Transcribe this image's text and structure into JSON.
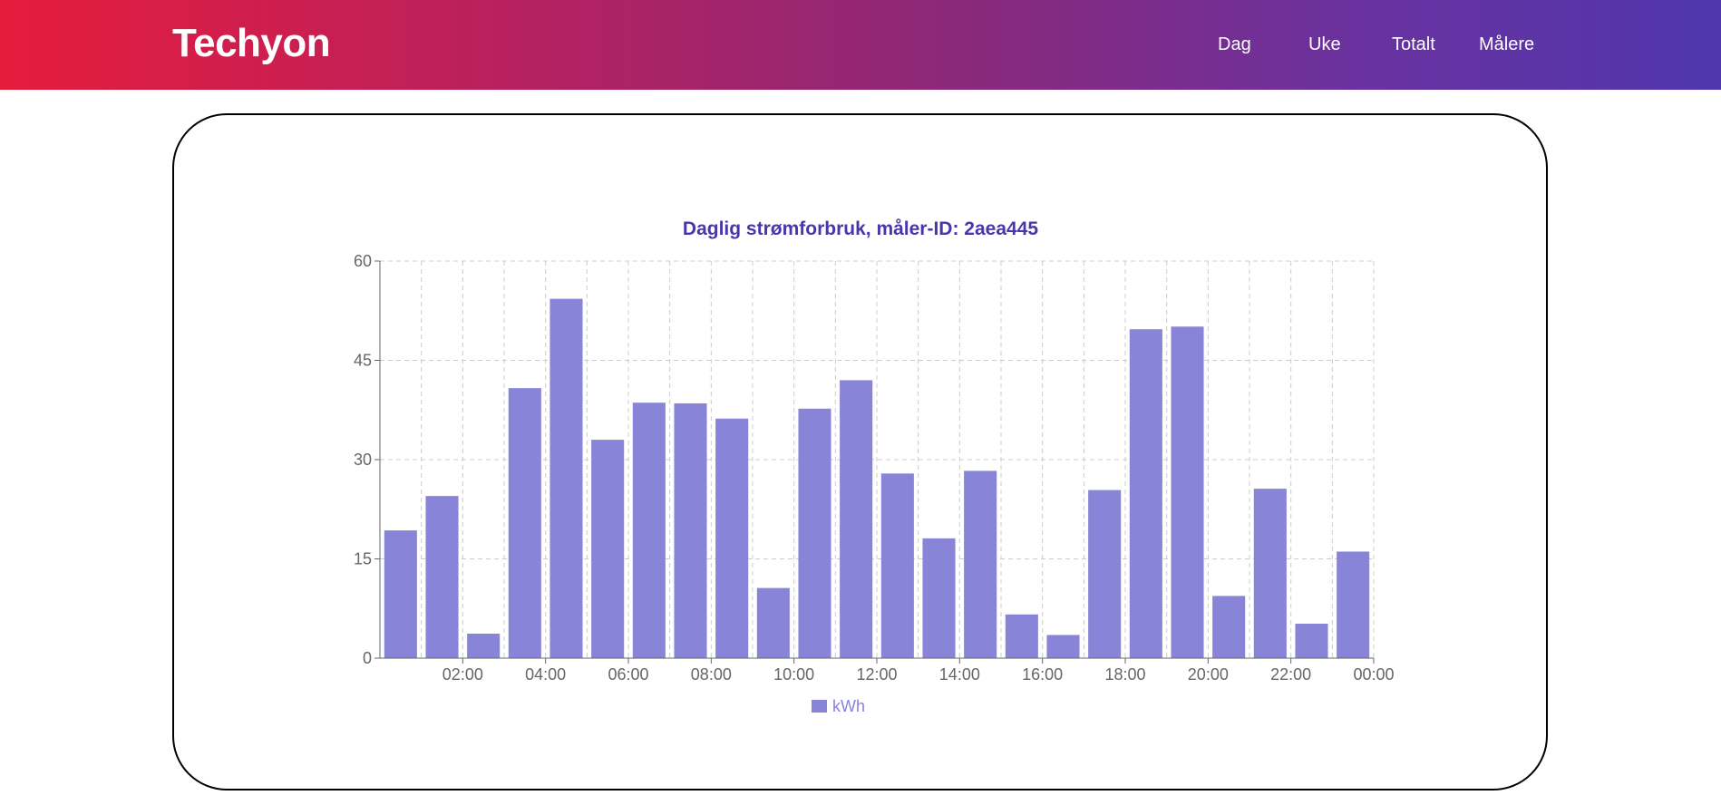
{
  "header": {
    "brand": "Techyon",
    "nav": [
      {
        "label": "Dag"
      },
      {
        "label": "Uke"
      },
      {
        "label": "Totalt"
      },
      {
        "label": "Målere"
      }
    ]
  },
  "colors": {
    "bar": "#8884d8",
    "title": "#4b35aa"
  },
  "chart_data": {
    "type": "bar",
    "title": "Daglig strømforbruk, måler-ID: 2aea445",
    "legend": [
      "kWh"
    ],
    "legend_position": "bottom",
    "grid": true,
    "xlabel": "",
    "ylabel": "",
    "ylim": [
      0,
      60
    ],
    "yticks": [
      0,
      15,
      30,
      45,
      60
    ],
    "xtick_labels": [
      "02:00",
      "04:00",
      "06:00",
      "08:00",
      "10:00",
      "12:00",
      "14:00",
      "16:00",
      "18:00",
      "20:00",
      "22:00",
      "00:00"
    ],
    "series": [
      {
        "name": "kWh",
        "values": [
          19.3,
          24.5,
          3.7,
          40.8,
          54.3,
          33.0,
          38.6,
          38.5,
          36.2,
          10.6,
          37.7,
          42.0,
          27.9,
          18.1,
          28.3,
          6.6,
          3.5,
          25.4,
          49.7,
          50.1,
          9.4,
          25.6,
          5.2,
          16.1
        ]
      }
    ]
  }
}
